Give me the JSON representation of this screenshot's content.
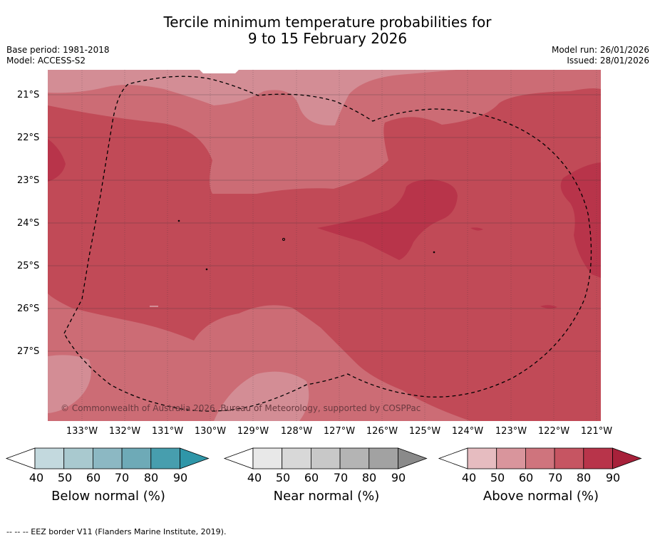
{
  "title": {
    "line1": "Tercile minimum temperature probabilities for",
    "line2": "9 to 15 February 2026"
  },
  "meta": {
    "base_period": "Base period: 1981-2018",
    "model": "Model: ACCESS-S2",
    "model_run": "Model run: 26/01/2026",
    "issued": "Issued: 28/01/2026"
  },
  "map": {
    "latitudes": [
      "21°S",
      "22°S",
      "23°S",
      "24°S",
      "25°S",
      "26°S",
      "27°S"
    ],
    "longitudes": [
      "133°W",
      "132°W",
      "131°W",
      "130°W",
      "129°W",
      "128°W",
      "127°W",
      "126°W",
      "125°W",
      "124°W",
      "123°W",
      "122°W",
      "121°W"
    ],
    "copyright": "© Commonwealth of Australia 2026, Bureau of Meteorology, supported by COSPPac",
    "colors": {
      "ocean_light": "#d38d95",
      "c70": "#cc6c75",
      "c80": "#c14a57",
      "c90": "#b8344a"
    }
  },
  "colorbars": [
    {
      "label": "Below normal (%)",
      "ticks": [
        "40",
        "50",
        "60",
        "70",
        "80",
        "90"
      ],
      "colors": [
        "#c3d9de",
        "#a9c9cf",
        "#8cb8c3",
        "#6eaab7",
        "#479eae",
        "#2f96a8"
      ]
    },
    {
      "label": "Near normal (%)",
      "ticks": [
        "40",
        "50",
        "60",
        "70",
        "80",
        "90"
      ],
      "colors": [
        "#e8e8e8",
        "#d8d8d8",
        "#c8c8c8",
        "#b4b4b4",
        "#a2a2a2",
        "#8a8a8a"
      ]
    },
    {
      "label": "Above normal (%)",
      "ticks": [
        "40",
        "50",
        "60",
        "70",
        "80",
        "90"
      ],
      "colors": [
        "#e6bcc0",
        "#d9959c",
        "#cf747d",
        "#c65562",
        "#b8344a",
        "#a7213a"
      ]
    }
  ],
  "footnote": "--  --  -- EEZ border V11 (Flanders Marine Institute, 2019)."
}
